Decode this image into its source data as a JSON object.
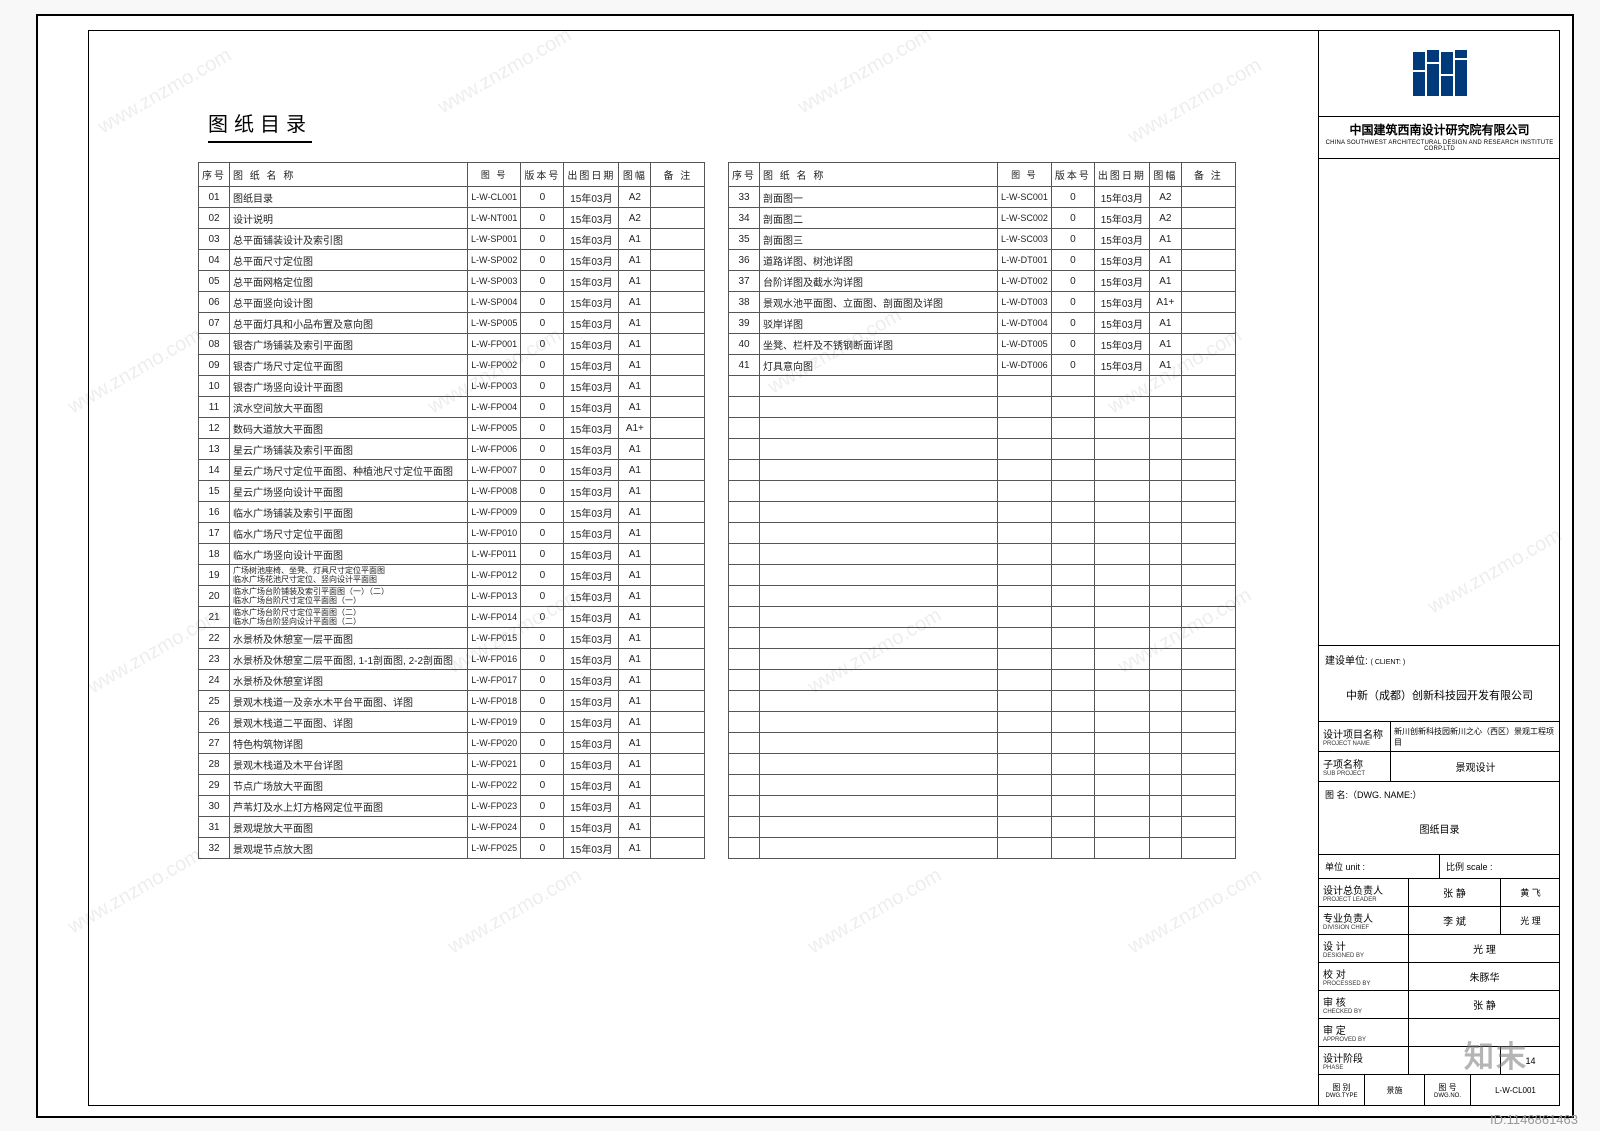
{
  "heading": "图纸目录",
  "watermark_text": "www.znzmo.com",
  "id_label": "ID:1146861463",
  "zm_mark": "知末",
  "columns": {
    "seq": "序号",
    "name": "图 纸 名 称",
    "code": "图 号",
    "ver": "版本号",
    "date": "出图日期",
    "size": "图幅",
    "note": "备 注"
  },
  "tableA": [
    {
      "seq": "01",
      "name": "图纸目录",
      "code": "L-W-CL001",
      "ver": "0",
      "date": "15年03月",
      "size": "A2"
    },
    {
      "seq": "02",
      "name": "设计说明",
      "code": "L-W-NT001",
      "ver": "0",
      "date": "15年03月",
      "size": "A2"
    },
    {
      "seq": "03",
      "name": "总平面铺装设计及索引图",
      "code": "L-W-SP001",
      "ver": "0",
      "date": "15年03月",
      "size": "A1"
    },
    {
      "seq": "04",
      "name": "总平面尺寸定位图",
      "code": "L-W-SP002",
      "ver": "0",
      "date": "15年03月",
      "size": "A1"
    },
    {
      "seq": "05",
      "name": "总平面网格定位图",
      "code": "L-W-SP003",
      "ver": "0",
      "date": "15年03月",
      "size": "A1"
    },
    {
      "seq": "06",
      "name": "总平面竖向设计图",
      "code": "L-W-SP004",
      "ver": "0",
      "date": "15年03月",
      "size": "A1"
    },
    {
      "seq": "07",
      "name": "总平面灯具和小品布置及意向图",
      "code": "L-W-SP005",
      "ver": "0",
      "date": "15年03月",
      "size": "A1"
    },
    {
      "seq": "08",
      "name": "银杏广场铺装及索引平面图",
      "code": "L-W-FP001",
      "ver": "0",
      "date": "15年03月",
      "size": "A1"
    },
    {
      "seq": "09",
      "name": "银杏广场尺寸定位平面图",
      "code": "L-W-FP002",
      "ver": "0",
      "date": "15年03月",
      "size": "A1"
    },
    {
      "seq": "10",
      "name": "银杏广场竖向设计平面图",
      "code": "L-W-FP003",
      "ver": "0",
      "date": "15年03月",
      "size": "A1"
    },
    {
      "seq": "11",
      "name": "滨水空间放大平面图",
      "code": "L-W-FP004",
      "ver": "0",
      "date": "15年03月",
      "size": "A1"
    },
    {
      "seq": "12",
      "name": "数码大道放大平面图",
      "code": "L-W-FP005",
      "ver": "0",
      "date": "15年03月",
      "size": "A1+"
    },
    {
      "seq": "13",
      "name": "星云广场铺装及索引平面图",
      "code": "L-W-FP006",
      "ver": "0",
      "date": "15年03月",
      "size": "A1"
    },
    {
      "seq": "14",
      "name": "星云广场尺寸定位平面图、种植池尺寸定位平面图",
      "code": "L-W-FP007",
      "ver": "0",
      "date": "15年03月",
      "size": "A1"
    },
    {
      "seq": "15",
      "name": "星云广场竖向设计平面图",
      "code": "L-W-FP008",
      "ver": "0",
      "date": "15年03月",
      "size": "A1"
    },
    {
      "seq": "16",
      "name": "临水广场铺装及索引平面图",
      "code": "L-W-FP009",
      "ver": "0",
      "date": "15年03月",
      "size": "A1"
    },
    {
      "seq": "17",
      "name": "临水广场尺寸定位平面图",
      "code": "L-W-FP010",
      "ver": "0",
      "date": "15年03月",
      "size": "A1"
    },
    {
      "seq": "18",
      "name": "临水广场竖向设计平面图",
      "code": "L-W-FP011",
      "ver": "0",
      "date": "15年03月",
      "size": "A1"
    },
    {
      "seq": "19",
      "name": "广场树池座椅、坐凳、灯具尺寸定位平面图\n临水广场花池尺寸定位、竖向设计平面图",
      "code": "L-W-FP012",
      "ver": "0",
      "date": "15年03月",
      "size": "A1",
      "ml": true
    },
    {
      "seq": "20",
      "name": "临水广场台阶铺装及索引平面图（一）（二）\n临水广场台阶尺寸定位平面图（一）",
      "code": "L-W-FP013",
      "ver": "0",
      "date": "15年03月",
      "size": "A1",
      "ml": true
    },
    {
      "seq": "21",
      "name": "临水广场台阶尺寸定位平面图（二）\n临水广场台阶竖向设计平面图（二）",
      "code": "L-W-FP014",
      "ver": "0",
      "date": "15年03月",
      "size": "A1",
      "ml": true
    },
    {
      "seq": "22",
      "name": "水景桥及休憩室一层平面图",
      "code": "L-W-FP015",
      "ver": "0",
      "date": "15年03月",
      "size": "A1"
    },
    {
      "seq": "23",
      "name": "水景桥及休憩室二层平面图, 1-1剖面图, 2-2剖面图",
      "code": "L-W-FP016",
      "ver": "0",
      "date": "15年03月",
      "size": "A1"
    },
    {
      "seq": "24",
      "name": "水景桥及休憩室详图",
      "code": "L-W-FP017",
      "ver": "0",
      "date": "15年03月",
      "size": "A1"
    },
    {
      "seq": "25",
      "name": "景观木栈道一及亲水木平台平面图、详图",
      "code": "L-W-FP018",
      "ver": "0",
      "date": "15年03月",
      "size": "A1"
    },
    {
      "seq": "26",
      "name": "景观木栈道二平面图、详图",
      "code": "L-W-FP019",
      "ver": "0",
      "date": "15年03月",
      "size": "A1"
    },
    {
      "seq": "27",
      "name": "特色构筑物详图",
      "code": "L-W-FP020",
      "ver": "0",
      "date": "15年03月",
      "size": "A1"
    },
    {
      "seq": "28",
      "name": "景观木栈道及木平台详图",
      "code": "L-W-FP021",
      "ver": "0",
      "date": "15年03月",
      "size": "A1"
    },
    {
      "seq": "29",
      "name": "节点广场放大平面图",
      "code": "L-W-FP022",
      "ver": "0",
      "date": "15年03月",
      "size": "A1"
    },
    {
      "seq": "30",
      "name": "芦苇灯及水上灯方格网定位平面图",
      "code": "L-W-FP023",
      "ver": "0",
      "date": "15年03月",
      "size": "A1"
    },
    {
      "seq": "31",
      "name": "景观堤放大平面图",
      "code": "L-W-FP024",
      "ver": "0",
      "date": "15年03月",
      "size": "A1"
    },
    {
      "seq": "32",
      "name": "景观堤节点放大图",
      "code": "L-W-FP025",
      "ver": "0",
      "date": "15年03月",
      "size": "A1"
    }
  ],
  "tableB": [
    {
      "seq": "33",
      "name": "剖面图一",
      "code": "L-W-SC001",
      "ver": "0",
      "date": "15年03月",
      "size": "A2"
    },
    {
      "seq": "34",
      "name": "剖面图二",
      "code": "L-W-SC002",
      "ver": "0",
      "date": "15年03月",
      "size": "A2"
    },
    {
      "seq": "35",
      "name": "剖面图三",
      "code": "L-W-SC003",
      "ver": "0",
      "date": "15年03月",
      "size": "A1"
    },
    {
      "seq": "36",
      "name": "道路详图、树池详图",
      "code": "L-W-DT001",
      "ver": "0",
      "date": "15年03月",
      "size": "A1"
    },
    {
      "seq": "37",
      "name": "台阶详图及截水沟详图",
      "code": "L-W-DT002",
      "ver": "0",
      "date": "15年03月",
      "size": "A1"
    },
    {
      "seq": "38",
      "name": "景观水池平面图、立面图、剖面图及详图",
      "code": "L-W-DT003",
      "ver": "0",
      "date": "15年03月",
      "size": "A1+"
    },
    {
      "seq": "39",
      "name": "驳岸详图",
      "code": "L-W-DT004",
      "ver": "0",
      "date": "15年03月",
      "size": "A1"
    },
    {
      "seq": "40",
      "name": "坐凳、栏杆及不锈钢断面详图",
      "code": "L-W-DT005",
      "ver": "0",
      "date": "15年03月",
      "size": "A1"
    },
    {
      "seq": "41",
      "name": "灯具意向图",
      "code": "L-W-DT006",
      "ver": "0",
      "date": "15年03月",
      "size": "A1"
    }
  ],
  "tableB_blank_rows": 23,
  "titleblock": {
    "company_cn": "中国建筑西南设计研究院有限公司",
    "company_en": "CHINA SOUTHWEST ARCHITECTURAL DESIGN AND RESEARCH INSTITUTE CORP.LTD",
    "client_label_cn": "建设单位:",
    "client_label_en": "( CLIENT: )",
    "client_name": "中新（成都）创新科技园开发有限公司",
    "project_label_cn": "设计项目名称",
    "project_label_en": "PROJECT NAME",
    "project_name": "新川创新科技园新川之心（西区）景观工程项目",
    "subproject_label_cn": "子项名称",
    "subproject_label_en": "SUB PROJECT",
    "subproject_name": "景观设计",
    "dwg_name_label": "图 名:（DWG. NAME:）",
    "dwg_name": "图纸目录",
    "unit_label": "单位 unit :",
    "scale_label": "比例 scale :",
    "sig": [
      {
        "cn": "设计总负责人",
        "en": "PROJECT LEADER",
        "v": "张 静",
        "v2": "黄 飞"
      },
      {
        "cn": "专业负责人",
        "en": "DIVISION CHIEF",
        "v": "李 斌",
        "v2": "光 理"
      },
      {
        "cn": "设 计",
        "en": "DESIGNED BY",
        "v": "光 理"
      },
      {
        "cn": "校 对",
        "en": "PROCESSED BY",
        "v": "朱豚华"
      },
      {
        "cn": "审 核",
        "en": "CHECKED BY",
        "v": "张 静"
      },
      {
        "cn": "审 定",
        "en": "APPROVED BY",
        "v": ""
      },
      {
        "cn": "设计阶段",
        "en": "PHASE",
        "v": "",
        "v2": "14"
      }
    ],
    "bottom": {
      "c1a": "图 别",
      "c1b": "DWG.TYPE",
      "c1v": "景施",
      "c2a": "图 号",
      "c2b": "DWG.NO.",
      "c2v": "L-W-CL001"
    },
    "logo_color": "#003a7a"
  }
}
